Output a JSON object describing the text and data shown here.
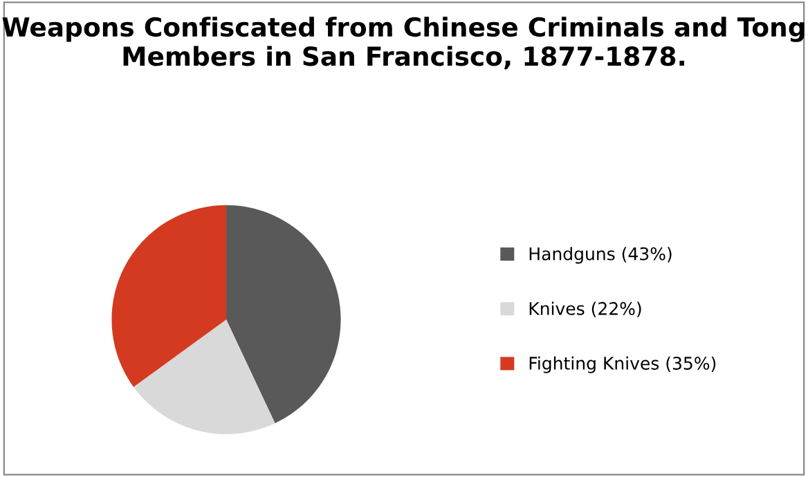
{
  "chart_data": {
    "type": "pie",
    "title": "Weapons Confiscated from Chinese Criminals and Tong Members in San Francisco, 1877-1878.",
    "categories": [
      "Handguns (43%)",
      "Knives (22%)",
      "Fighting Knives (35%)"
    ],
    "values": [
      43,
      22,
      35
    ],
    "colors": [
      "#595959",
      "#d9d9d9",
      "#d33a1f"
    ],
    "legend": "right"
  }
}
